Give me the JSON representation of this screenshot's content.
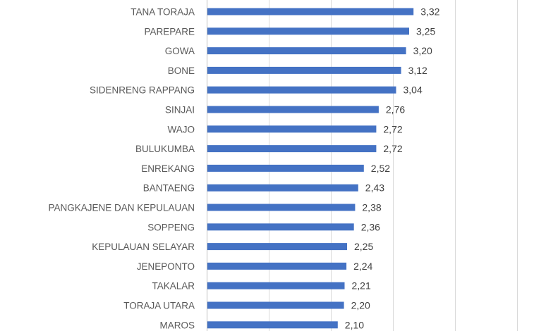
{
  "chart_data": {
    "type": "bar",
    "orientation": "horizontal",
    "categories": [
      "TANA TORAJA",
      "PAREPARE",
      "GOWA",
      "BONE",
      "SIDENRENG RAPPANG",
      "SINJAI",
      "WAJO",
      "BULUKUMBA",
      "ENREKANG",
      "BANTAENG",
      "PANGKAJENE DAN KEPULAUAN",
      "SOPPENG",
      "KEPULAUAN SELAYAR",
      "JENEPONTO",
      "TAKALAR",
      "TORAJA UTARA",
      "MAROS"
    ],
    "values": [
      3.32,
      3.25,
      3.2,
      3.12,
      3.04,
      2.76,
      2.72,
      2.72,
      2.52,
      2.43,
      2.38,
      2.36,
      2.25,
      2.24,
      2.21,
      2.2,
      2.1
    ],
    "value_labels": [
      "3,32",
      "3,25",
      "3,20",
      "3,12",
      "3,04",
      "2,76",
      "2,72",
      "2,72",
      "2,52",
      "2,43",
      "2,38",
      "2,36",
      "2,25",
      "2,24",
      "2,21",
      "2,20",
      "2,10"
    ],
    "xlim": [
      0,
      5
    ],
    "grid": true,
    "bar_color": "#4472C4"
  }
}
